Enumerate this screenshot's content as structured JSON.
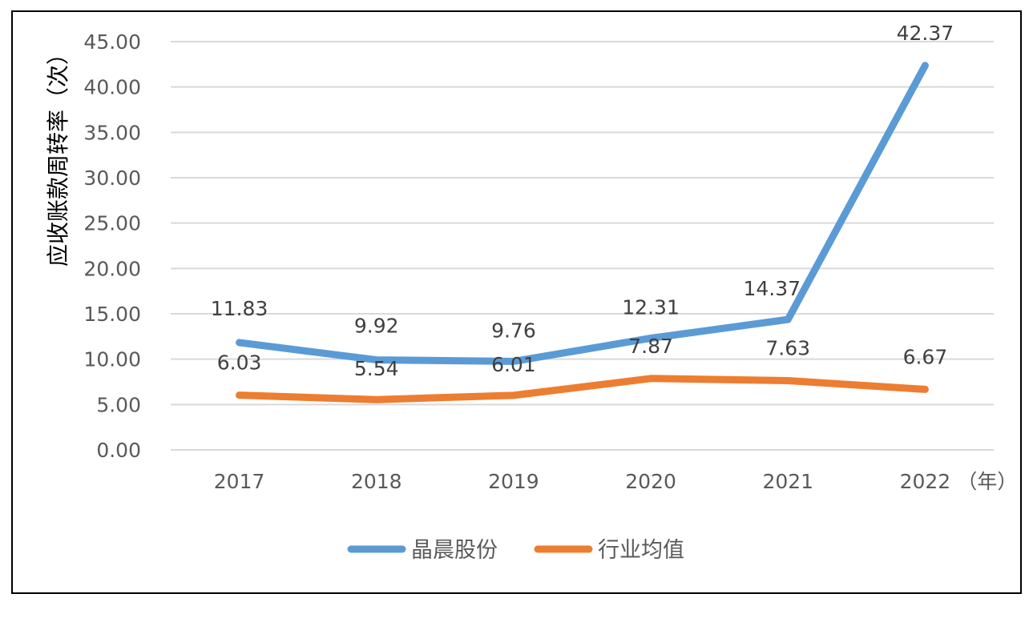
{
  "chart_data": {
    "type": "line",
    "title": "",
    "ylabel": "应收账款周转率（次）",
    "xlabel": "",
    "x_unit": "（年）",
    "categories": [
      "2017",
      "2018",
      "2019",
      "2020",
      "2021",
      "2022"
    ],
    "ylim": [
      0,
      45
    ],
    "ytick_step": 5,
    "yticks": [
      "0.00",
      "5.00",
      "10.00",
      "15.00",
      "20.00",
      "25.00",
      "30.00",
      "35.00",
      "40.00",
      "45.00"
    ],
    "grid": true,
    "legend_position": "bottom",
    "series": [
      {
        "name": "晶晨股份",
        "color": "#5B9BD5",
        "values": [
          11.83,
          9.92,
          9.76,
          12.31,
          14.37,
          42.37
        ],
        "labels": [
          "11.83",
          "9.92",
          "9.76",
          "12.31",
          "14.37",
          "42.37"
        ]
      },
      {
        "name": "行业均值",
        "color": "#ED7D31",
        "values": [
          6.03,
          5.54,
          6.01,
          7.87,
          7.63,
          6.67
        ],
        "labels": [
          "6.03",
          "5.54",
          "6.01",
          "7.87",
          "7.63",
          "6.67"
        ]
      }
    ]
  }
}
